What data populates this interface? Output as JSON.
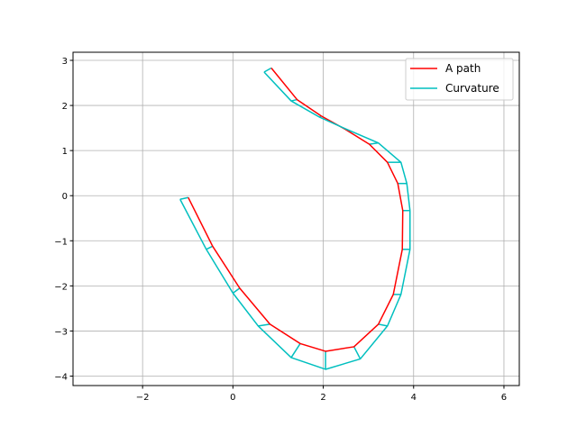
{
  "chart_data": {
    "type": "line",
    "title": "",
    "xlabel": "",
    "ylabel": "",
    "xlim": [
      -3.54,
      6.34
    ],
    "ylim": [
      -4.21,
      3.18
    ],
    "xticks": [
      -2,
      0,
      2,
      4,
      6
    ],
    "yticks": [
      -4,
      -3,
      -2,
      -1,
      0,
      1,
      2,
      3
    ],
    "grid": true,
    "legend_position": "top-right",
    "series": [
      {
        "name": "A path",
        "color": "#ff0000",
        "points": [
          [
            -0.99,
            -0.04
          ],
          [
            -0.45,
            -1.12
          ],
          [
            0.15,
            -2.05
          ],
          [
            0.82,
            -2.85
          ],
          [
            1.49,
            -3.28
          ],
          [
            2.05,
            -3.45
          ],
          [
            2.68,
            -3.35
          ],
          [
            3.22,
            -2.85
          ],
          [
            3.55,
            -2.19
          ],
          [
            3.75,
            -1.19
          ],
          [
            3.76,
            -0.33
          ],
          [
            3.65,
            0.27
          ],
          [
            3.42,
            0.74
          ],
          [
            3.02,
            1.14
          ],
          [
            2.49,
            1.47
          ],
          [
            1.95,
            1.77
          ],
          [
            1.42,
            2.13
          ],
          [
            0.85,
            2.83
          ]
        ]
      },
      {
        "name": "Curvature",
        "color": "#00bfbf",
        "points": [
          [
            -1.17,
            -0.08
          ],
          [
            -0.59,
            -1.19
          ],
          [
            0.0,
            -2.16
          ],
          [
            0.56,
            -2.89
          ],
          [
            1.29,
            -3.59
          ],
          [
            2.05,
            -3.85
          ],
          [
            2.82,
            -3.62
          ],
          [
            3.42,
            -2.89
          ],
          [
            3.72,
            -2.19
          ],
          [
            3.92,
            -1.19
          ],
          [
            3.92,
            -0.33
          ],
          [
            3.85,
            0.27
          ],
          [
            3.72,
            0.74
          ],
          [
            3.22,
            1.17
          ],
          [
            2.45,
            1.5
          ],
          [
            1.92,
            1.74
          ],
          [
            1.29,
            2.1
          ],
          [
            0.69,
            2.74
          ]
        ]
      }
    ]
  }
}
